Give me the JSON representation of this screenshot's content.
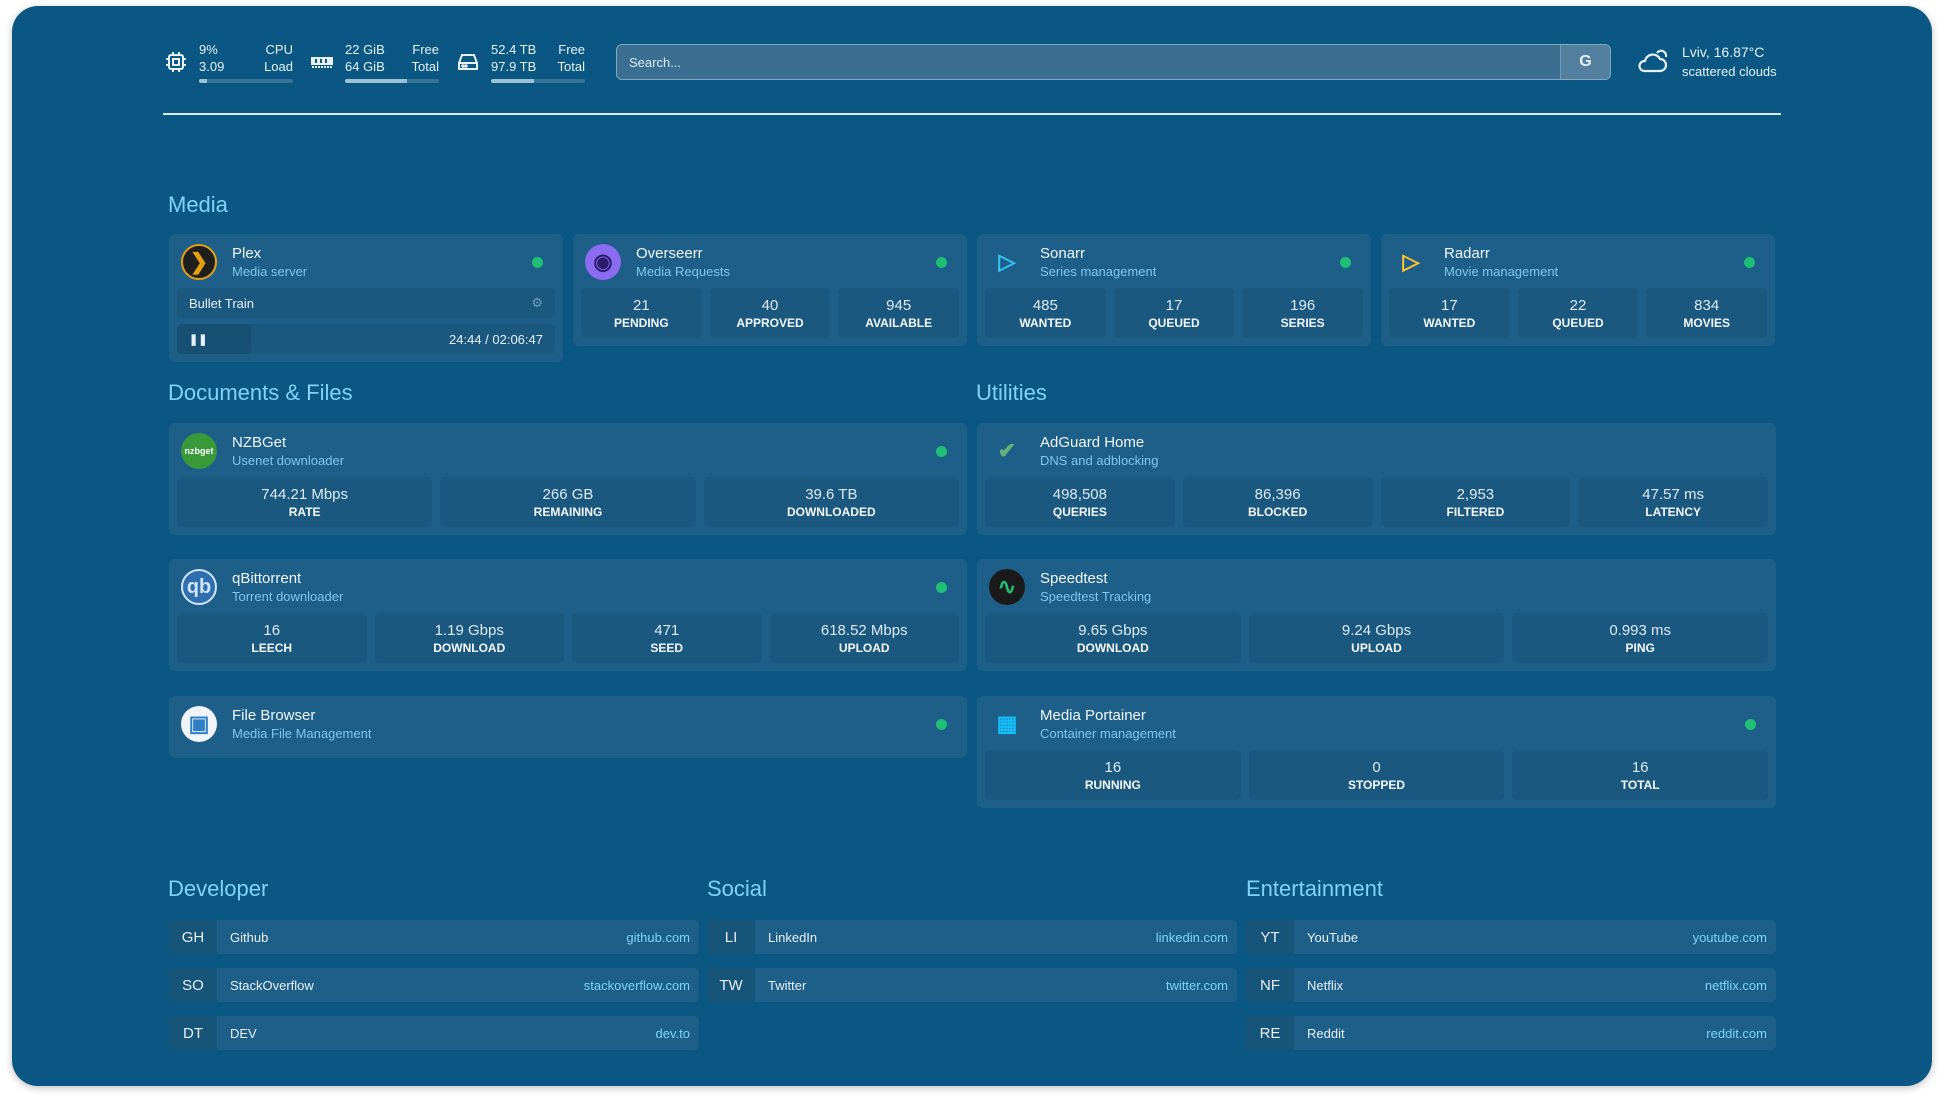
{
  "header": {
    "cpu": {
      "percent": "9%",
      "load": "3.09",
      "label1": "CPU",
      "label2": "Load",
      "usage": 9
    },
    "memory": {
      "free": "22 GiB",
      "total": "64 GiB",
      "label1": "Free",
      "label2": "Total",
      "used_fraction": 0.66
    },
    "disk": {
      "free": "52.4 TB",
      "total": "97.9 TB",
      "label1": "Free",
      "label2": "Total",
      "used_fraction": 0.46
    },
    "search": {
      "placeholder": "Search...",
      "provider": "G"
    },
    "weather": {
      "location": "Lviv, 16.87°C",
      "condition": "scattered clouds"
    }
  },
  "colors": {
    "background": "#0a5783",
    "card": "#1d5f88",
    "heading": "#7fd3f7",
    "status_online": "#1fbf75"
  },
  "sections": {
    "media": "Media",
    "documents": "Documents & Files",
    "utilities": "Utilities",
    "developer": "Developer",
    "social": "Social",
    "entertainment": "Entertainment"
  },
  "services": {
    "plex": {
      "name": "Plex",
      "desc": "Media server",
      "icon": "plex-icon",
      "now_playing": {
        "title": "Bullet Train",
        "time": "24:44 / 02:06:47",
        "progress": 0.196
      }
    },
    "overseerr": {
      "name": "Overseerr",
      "desc": "Media Requests",
      "icon": "overseerr-icon",
      "stats": [
        {
          "v": "21",
          "l": "PENDING"
        },
        {
          "v": "40",
          "l": "APPROVED"
        },
        {
          "v": "945",
          "l": "AVAILABLE"
        }
      ]
    },
    "sonarr": {
      "name": "Sonarr",
      "desc": "Series management",
      "icon": "sonarr-icon",
      "stats": [
        {
          "v": "485",
          "l": "WANTED"
        },
        {
          "v": "17",
          "l": "QUEUED"
        },
        {
          "v": "196",
          "l": "SERIES"
        }
      ]
    },
    "radarr": {
      "name": "Radarr",
      "desc": "Movie management",
      "icon": "radarr-icon",
      "stats": [
        {
          "v": "17",
          "l": "WANTED"
        },
        {
          "v": "22",
          "l": "QUEUED"
        },
        {
          "v": "834",
          "l": "MOVIES"
        }
      ]
    },
    "nzbget": {
      "name": "NZBGet",
      "desc": "Usenet downloader",
      "icon": "nzbget-icon",
      "icon_text": "nzbget",
      "stats": [
        {
          "v": "744.21 Mbps",
          "l": "RATE"
        },
        {
          "v": "266 GB",
          "l": "REMAINING"
        },
        {
          "v": "39.6 TB",
          "l": "DOWNLOADED"
        }
      ]
    },
    "qbittorrent": {
      "name": "qBittorrent",
      "desc": "Torrent downloader",
      "icon": "qbittorrent-icon",
      "icon_text": "qb",
      "stats": [
        {
          "v": "16",
          "l": "LEECH"
        },
        {
          "v": "1.19 Gbps",
          "l": "DOWNLOAD"
        },
        {
          "v": "471",
          "l": "SEED"
        },
        {
          "v": "618.52 Mbps",
          "l": "UPLOAD"
        }
      ]
    },
    "filebrowser": {
      "name": "File Browser",
      "desc": "Media File Management",
      "icon": "file-browser-icon"
    },
    "adguard": {
      "name": "AdGuard Home",
      "desc": "DNS and adblocking",
      "icon": "adguard-icon",
      "stats": [
        {
          "v": "498,508",
          "l": "QUERIES"
        },
        {
          "v": "86,396",
          "l": "BLOCKED"
        },
        {
          "v": "2,953",
          "l": "FILTERED"
        },
        {
          "v": "47.57 ms",
          "l": "LATENCY"
        }
      ]
    },
    "speedtest": {
      "name": "Speedtest",
      "desc": "Speedtest Tracking",
      "icon": "speedtest-icon",
      "stats": [
        {
          "v": "9.65 Gbps",
          "l": "DOWNLOAD"
        },
        {
          "v": "9.24 Gbps",
          "l": "UPLOAD"
        },
        {
          "v": "0.993 ms",
          "l": "PING"
        }
      ]
    },
    "portainer": {
      "name": "Media Portainer",
      "desc": "Container management",
      "icon": "portainer-icon",
      "stats": [
        {
          "v": "16",
          "l": "RUNNING"
        },
        {
          "v": "0",
          "l": "STOPPED"
        },
        {
          "v": "16",
          "l": "TOTAL"
        }
      ]
    }
  },
  "bookmarks": {
    "developer": [
      {
        "abbr": "GH",
        "name": "Github",
        "url": "github.com"
      },
      {
        "abbr": "SO",
        "name": "StackOverflow",
        "url": "stackoverflow.com"
      },
      {
        "abbr": "DT",
        "name": "DEV",
        "url": "dev.to"
      }
    ],
    "social": [
      {
        "abbr": "LI",
        "name": "LinkedIn",
        "url": "linkedin.com"
      },
      {
        "abbr": "TW",
        "name": "Twitter",
        "url": "twitter.com"
      }
    ],
    "entertainment": [
      {
        "abbr": "YT",
        "name": "YouTube",
        "url": "youtube.com"
      },
      {
        "abbr": "NF",
        "name": "Netflix",
        "url": "netflix.com"
      },
      {
        "abbr": "RE",
        "name": "Reddit",
        "url": "reddit.com"
      }
    ]
  }
}
